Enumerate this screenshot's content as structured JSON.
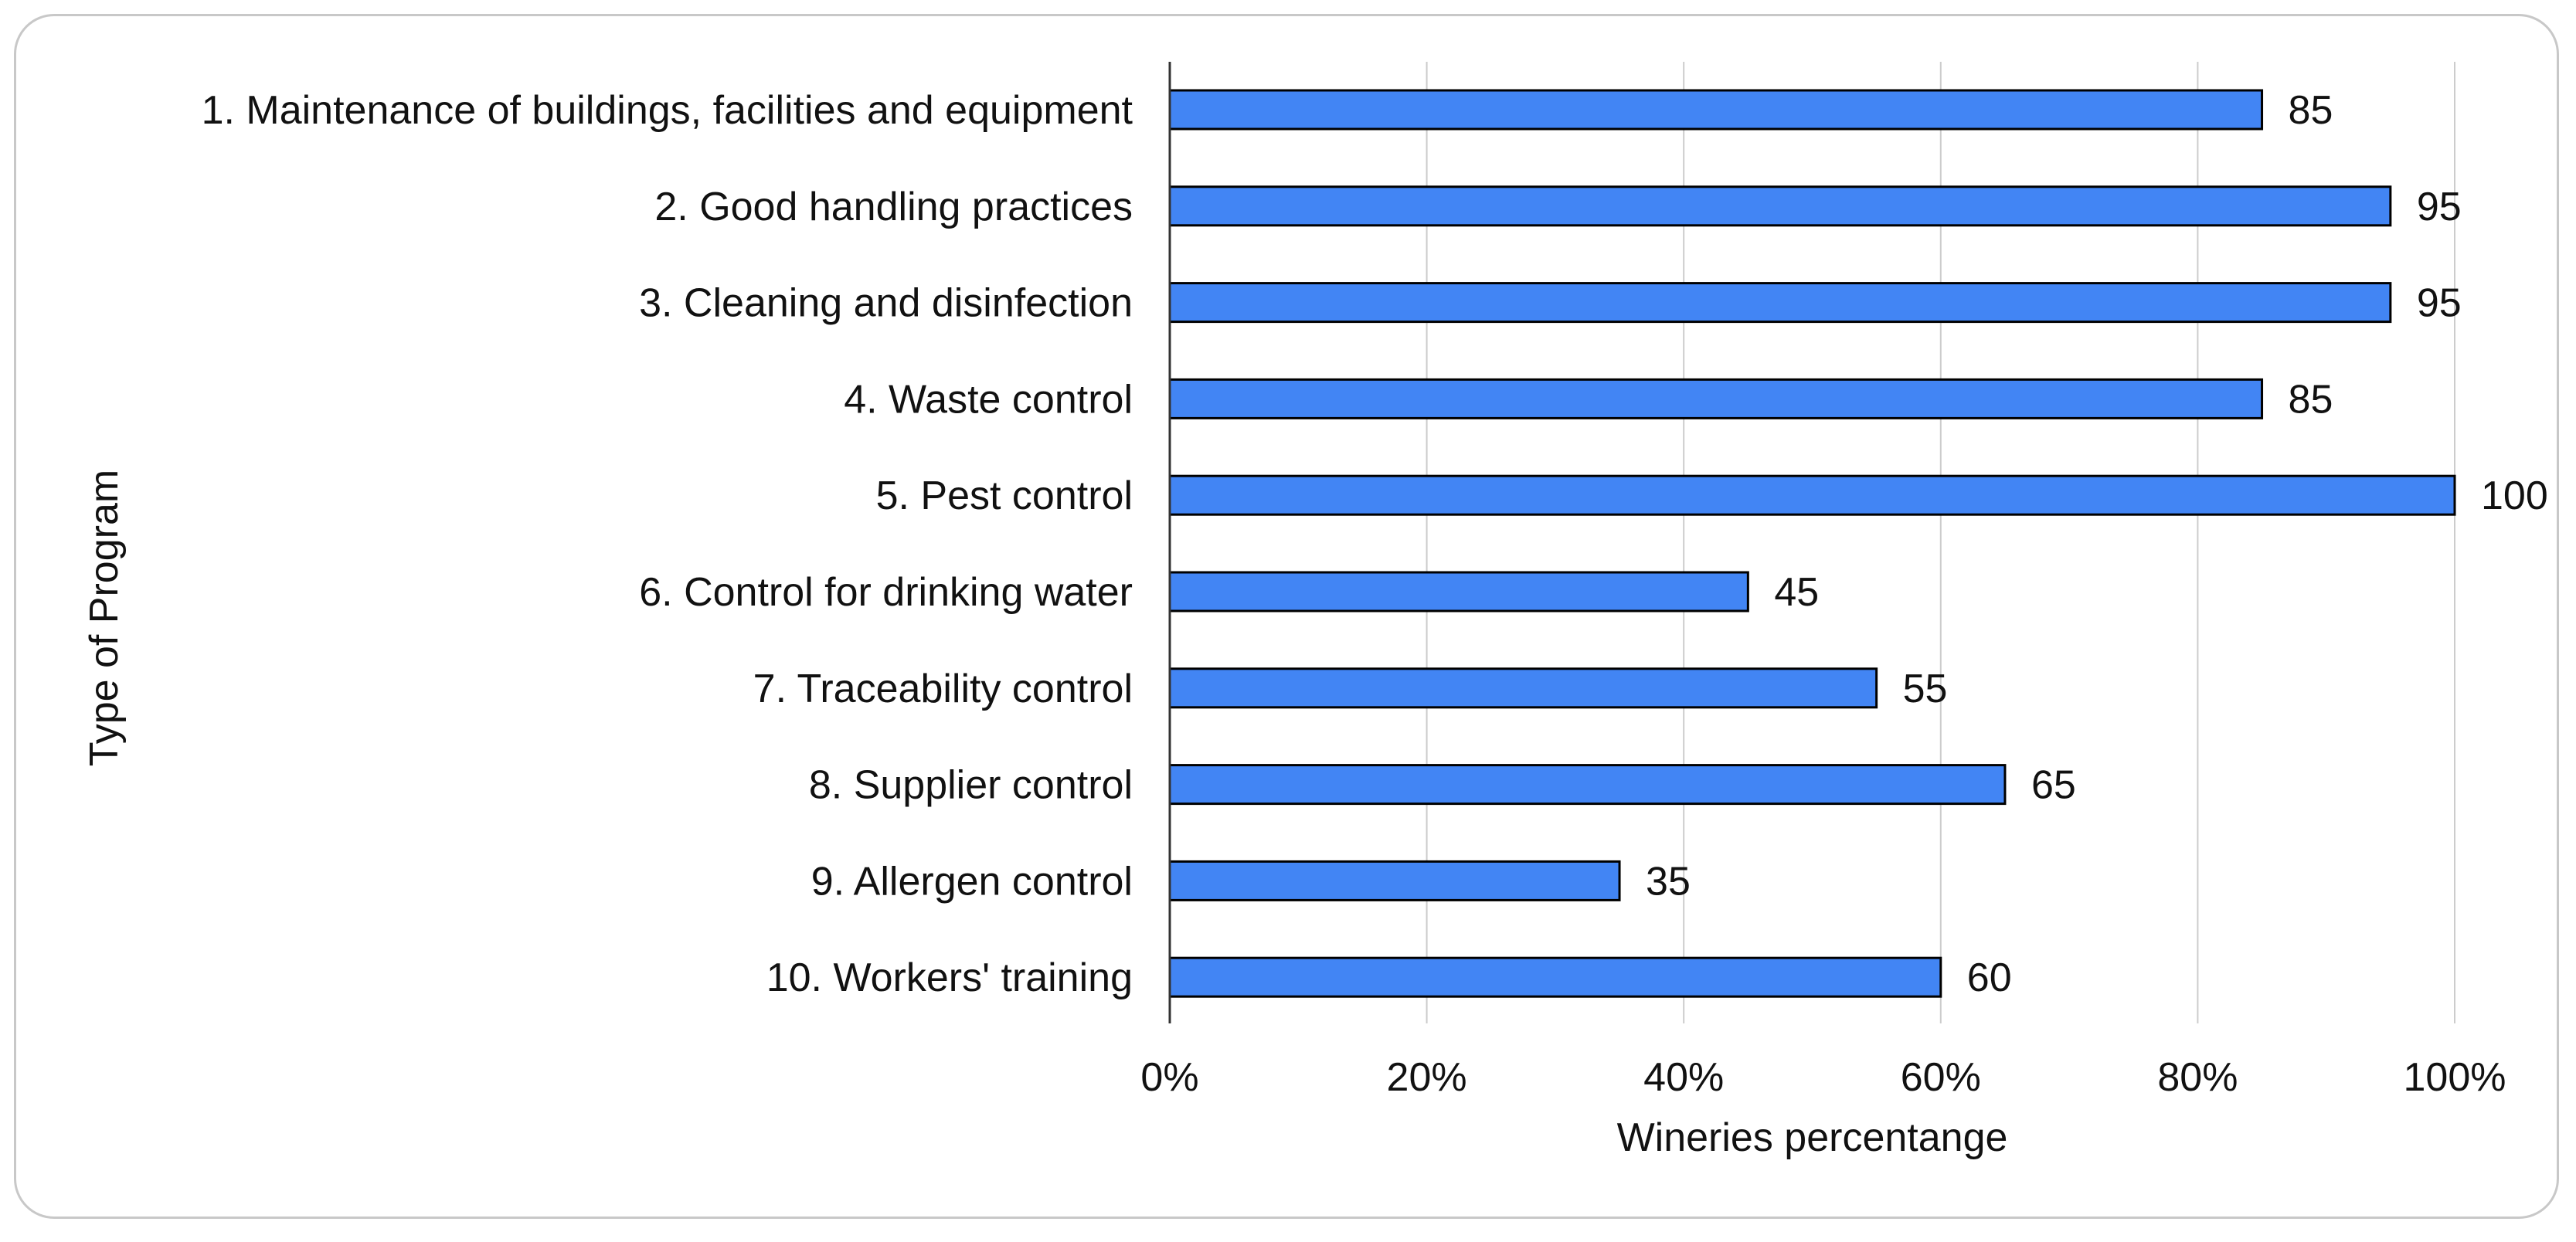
{
  "chart_data": {
    "type": "bar",
    "orientation": "horizontal",
    "categories": [
      "1. Maintenance of buildings, facilities and equipment",
      "2. Good handling practices",
      "3. Cleaning and disinfection",
      "4. Waste control",
      "5. Pest control",
      "6. Control for drinking water",
      "7. Traceability control",
      "8. Supplier control",
      "9. Allergen control",
      "10. Workers' training"
    ],
    "values": [
      85,
      95,
      95,
      85,
      100,
      45,
      55,
      65,
      35,
      60
    ],
    "data_labels": [
      "85",
      "95",
      "95",
      "85",
      "100",
      "45",
      "55",
      "65",
      "35",
      "60"
    ],
    "xlabel": "Wineries percentange",
    "ylabel": "Type of Program",
    "xlim": [
      0,
      100
    ],
    "x_ticks": [
      0,
      20,
      40,
      60,
      80,
      100
    ],
    "x_tick_labels": [
      "0%",
      "20%",
      "40%",
      "60%",
      "80%",
      "100%"
    ],
    "grid": "vertical",
    "legend": "none",
    "bar_color": "#4285f4",
    "bar_edge_color": "#000000",
    "grid_color": "#cccccc"
  }
}
